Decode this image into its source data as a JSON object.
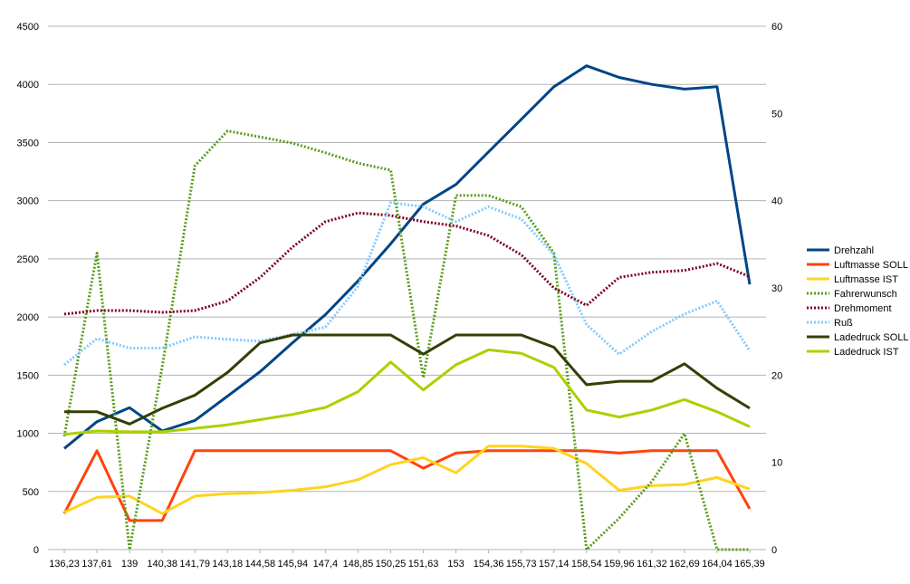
{
  "chart_data": {
    "type": "line",
    "x": [
      "136,23",
      "137,61",
      "139",
      "140,38",
      "141,79",
      "143,18",
      "144,58",
      "145,94",
      "147,4",
      "148,85",
      "150,25",
      "151,63",
      "153",
      "154,36",
      "155,73",
      "157,14",
      "158,54",
      "159,96",
      "161,32",
      "162,69",
      "164,04",
      "165,39"
    ],
    "y_left": {
      "ticks": [
        "0",
        "500",
        "1000",
        "1500",
        "2000",
        "2500",
        "3000",
        "3500",
        "4000",
        "4500"
      ],
      "range": [
        0,
        4500
      ]
    },
    "y_right": {
      "ticks": [
        "0",
        "10",
        "20",
        "30",
        "40",
        "50",
        "60"
      ],
      "range": [
        0,
        60
      ]
    },
    "grid": "horizontal",
    "legend": "right",
    "series": [
      {
        "name": "Drehzahl",
        "axis": "left",
        "color": "#004586",
        "style": "solid",
        "width": 3,
        "values": [
          870,
          1100,
          1220,
          1020,
          1110,
          1320,
          1530,
          1780,
          2020,
          2310,
          2630,
          2970,
          3140,
          3420,
          3700,
          3980,
          4160,
          4060,
          4000,
          3960,
          3980,
          2280
        ]
      },
      {
        "name": "Luftmasse SOLL",
        "axis": "left",
        "color": "#ff420e",
        "style": "solid",
        "width": 3,
        "values": [
          310,
          850,
          250,
          250,
          850,
          850,
          850,
          850,
          850,
          850,
          850,
          700,
          830,
          850,
          850,
          850,
          850,
          830,
          850,
          850,
          850,
          350
        ]
      },
      {
        "name": "Luftmasse IST",
        "axis": "left",
        "color": "#ffd320",
        "style": "solid",
        "width": 3,
        "values": [
          320,
          450,
          460,
          310,
          460,
          480,
          490,
          510,
          540,
          600,
          730,
          790,
          660,
          890,
          890,
          870,
          740,
          510,
          550,
          560,
          620,
          520
        ]
      },
      {
        "name": "Fahrerwunsch",
        "axis": "right",
        "color": "#579d1c",
        "style": "dotted",
        "width": 3,
        "values": [
          13,
          34,
          0,
          21,
          44,
          48,
          47.3,
          46.6,
          45.5,
          44.3,
          43.5,
          19.7,
          40.6,
          40.6,
          39.3,
          34,
          0,
          3.6,
          7.8,
          13.3,
          0,
          0
        ]
      },
      {
        "name": "Drehmoment",
        "axis": "right",
        "color": "#7e0021",
        "style": "dotted",
        "width": 3,
        "values": [
          27,
          27.4,
          27.4,
          27.2,
          27.4,
          28.5,
          31.2,
          34.7,
          37.6,
          38.6,
          38.3,
          37.6,
          37.1,
          36,
          33.8,
          30,
          28,
          31.2,
          31.8,
          32,
          32.8,
          31.3
        ]
      },
      {
        "name": "Ruß",
        "axis": "right",
        "color": "#83caff",
        "style": "dotted",
        "width": 3,
        "values": [
          21.2,
          24.2,
          23.1,
          23.1,
          24.4,
          24.1,
          23.9,
          24.7,
          25.5,
          30.2,
          39.8,
          39.3,
          37.6,
          39.3,
          37.9,
          33.8,
          25.8,
          22.4,
          25,
          27,
          28.5,
          22.8
        ]
      },
      {
        "name": "Ladedruck SOLL",
        "axis": "right",
        "color": "#314004",
        "style": "solid",
        "width": 3,
        "values": [
          15.8,
          15.8,
          14.4,
          16.2,
          17.7,
          20.3,
          23.7,
          24.6,
          24.6,
          24.6,
          24.6,
          22.4,
          24.6,
          24.6,
          24.6,
          23.2,
          18.9,
          19.3,
          19.3,
          21.3,
          18.5,
          16.2
        ]
      },
      {
        "name": "Ladedruck IST",
        "axis": "right",
        "color": "#aecf00",
        "style": "solid",
        "width": 3,
        "values": [
          13.2,
          13.6,
          13.5,
          13.5,
          13.9,
          14.3,
          14.9,
          15.5,
          16.3,
          18.1,
          21.5,
          18.3,
          21.2,
          22.9,
          22.5,
          20.9,
          16,
          15.2,
          16,
          17.2,
          15.8,
          14.1
        ]
      }
    ]
  }
}
